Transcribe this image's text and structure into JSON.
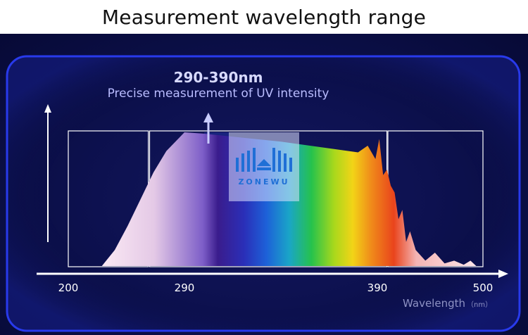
{
  "header": {
    "title": "Measurement wavelength range"
  },
  "annotation": {
    "range_label": "290-390nm",
    "description": "Precise measurement of UV intensity"
  },
  "logo": {
    "text": "ZONEWU"
  },
  "colors": {
    "background": "#0d1150",
    "frame": "#2a3cff",
    "axis": "#ffffff",
    "highlight_band": "#1f2f9a"
  },
  "chart_data": {
    "type": "area",
    "title": "Measurement wavelength range",
    "xlabel": "Wavelength",
    "xunit": "（nm）",
    "x_ticks": [
      200,
      290,
      390,
      500
    ],
    "xlim": [
      200,
      500
    ],
    "highlight_range": [
      290,
      390
    ],
    "regions": [
      {
        "from": 200,
        "to": 262
      },
      {
        "from": 263,
        "to": 400
      },
      {
        "from": 401,
        "to": 500
      }
    ],
    "series": [
      {
        "x": [
          226,
          236,
          246,
          256,
          266,
          276,
          286,
          290,
          300,
          320,
          340,
          360,
          380,
          385,
          389,
          392,
          396,
          400,
          404,
          408,
          412,
          416,
          420,
          424,
          430,
          440,
          450,
          460,
          470,
          480,
          487,
          493
        ],
        "y": [
          0,
          0.12,
          0.3,
          0.5,
          0.7,
          0.86,
          0.96,
          1.0,
          0.99,
          0.96,
          0.93,
          0.89,
          0.85,
          0.9,
          0.8,
          0.95,
          0.68,
          0.72,
          0.6,
          0.55,
          0.35,
          0.42,
          0.18,
          0.26,
          0.12,
          0.04,
          0.1,
          0.02,
          0.04,
          0.01,
          0.04,
          0.0
        ]
      }
    ]
  }
}
